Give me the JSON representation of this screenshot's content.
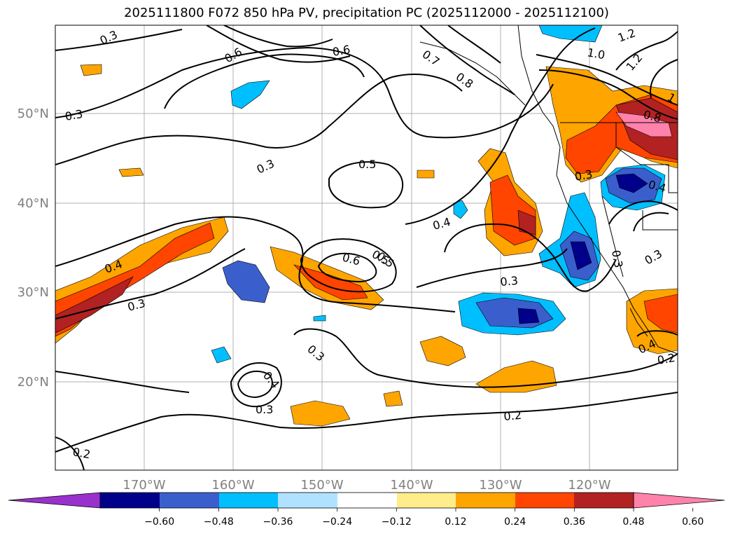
{
  "title": "2025111800 F072 850 hPa PV, precipitation PC (2025112000 - 2025112100)",
  "lat_labels": [
    "50°N",
    "40°N",
    "30°N",
    "20°N"
  ],
  "lon_labels": [
    "170°W",
    "160°W",
    "150°W",
    "140°W",
    "130°W",
    "120°W"
  ],
  "colorbar": {
    "colors": [
      "#9932CC",
      "#00008B",
      "#3A5FCD",
      "#00BFFF",
      "#B0E2FF",
      "#FFFFFF",
      "#FFEC8B",
      "#FFA500",
      "#FF4500",
      "#B22222",
      "#FF82AB"
    ],
    "tick_labels": [
      "−0.60",
      "−0.48",
      "−0.36",
      "−0.24",
      "−0.12",
      "0.12",
      "0.24",
      "0.36",
      "0.48",
      "0.60"
    ]
  },
  "contour_labels": [
    "0.3",
    "0.5",
    "0.6",
    "0.7",
    "0.8",
    "1.0",
    "1.2",
    "1.2",
    "0.8",
    "1",
    "0.6",
    "0.5",
    "0.3",
    "0.3",
    "0.3",
    "0.4",
    "0.3",
    "0.3",
    "0.4",
    "0.5",
    "0.6",
    "0.4",
    "0.3",
    "0.4",
    "0.3",
    "0.3",
    "0.2",
    "0.2",
    "0.3",
    "0.2",
    "0.4"
  ]
}
